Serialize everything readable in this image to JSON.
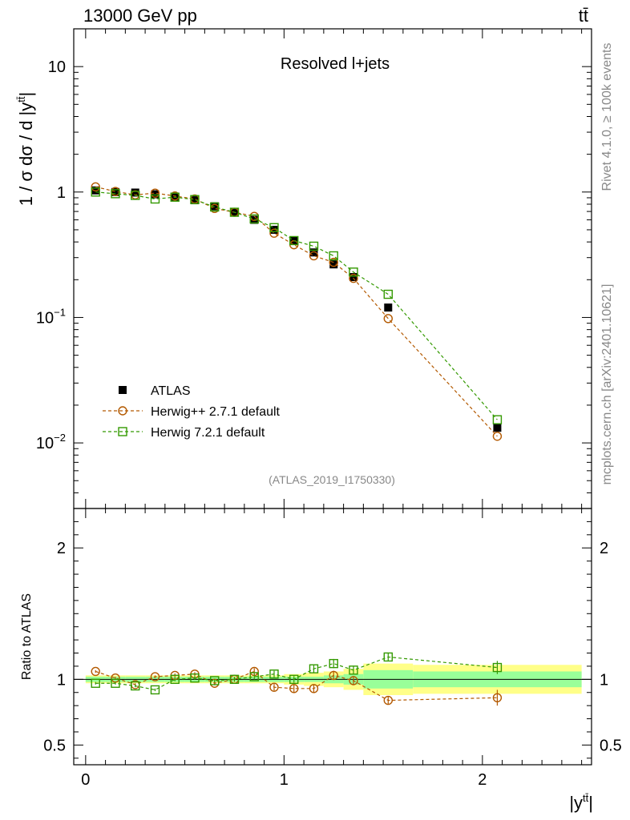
{
  "header": {
    "left_label": "13000 GeV pp",
    "right_label": "tt̄"
  },
  "side_labels": {
    "rivet": "Rivet 4.1.0, ≥ 100k events",
    "mcplots": "mcplots.cern.ch [arXiv:2401.10621]"
  },
  "chart_data": {
    "type": "scatter",
    "title": "Resolved l+jets",
    "analysis_tag": "(ATLAS_2019_I1750330)",
    "xlabel": "|y^{tt̄}|",
    "xlabel_main": "|y",
    "xlabel_sup": "tt̄",
    "xlabel_close": "|",
    "ylabel": "1 / σ dσ / d |y^{tt̄}|",
    "ylabel_main": "1 / σ dσ / d |y",
    "ylabel_sup": "tt̄",
    "ylabel_close": "|",
    "ratio_ylabel": "Ratio to ATLAS",
    "xlim": [
      -0.06,
      2.55
    ],
    "ylim_main": [
      0.003,
      20
    ],
    "ylim_ratio": [
      0.35,
      2.3
    ],
    "yscale_main": "log",
    "x_ticks": [
      0,
      1,
      2
    ],
    "x_tick_labels": [
      "0",
      "1",
      "2"
    ],
    "main_y_ticks": [
      {
        "value": 10,
        "base": "10",
        "exp": ""
      },
      {
        "value": 1,
        "base": "1",
        "exp": ""
      },
      {
        "value": 0.1,
        "base": "10",
        "exp": "−1"
      },
      {
        "value": 0.01,
        "base": "10",
        "exp": "−2"
      }
    ],
    "ratio_y_ticks": [
      0.5,
      1,
      2
    ],
    "ratio_y_tick_labels": [
      "0.5",
      "1",
      "2"
    ],
    "legend_position": "lower-left",
    "bin_edges": [
      0.0,
      0.1,
      0.2,
      0.3,
      0.4,
      0.5,
      0.6,
      0.7,
      0.8,
      0.9,
      1.0,
      1.1,
      1.2,
      1.3,
      1.4,
      1.65,
      2.5
    ],
    "x": [
      0.05,
      0.15,
      0.25,
      0.35,
      0.45,
      0.55,
      0.65,
      0.75,
      0.85,
      0.95,
      1.05,
      1.15,
      1.25,
      1.35,
      1.525,
      2.075
    ],
    "ratio_bands": {
      "stat_half_width": [
        0.02,
        0.02,
        0.02,
        0.02,
        0.02,
        0.02,
        0.02,
        0.02,
        0.02,
        0.02,
        0.02,
        0.02,
        0.03,
        0.04,
        0.07,
        0.06
      ],
      "total_half_width": [
        0.03,
        0.03,
        0.03,
        0.03,
        0.03,
        0.03,
        0.03,
        0.03,
        0.03,
        0.03,
        0.04,
        0.05,
        0.06,
        0.08,
        0.12,
        0.11
      ],
      "stat_color": "#99ff99",
      "total_color": "#ffff88"
    },
    "series": [
      {
        "name": "ATLAS",
        "color": "#000000",
        "marker": "filled-square",
        "values": [
          1.03,
          1.0,
          0.99,
          0.96,
          0.92,
          0.86,
          0.77,
          0.69,
          0.6,
          0.5,
          0.41,
          0.33,
          0.265,
          0.21,
          0.12,
          0.0132
        ],
        "ratio": [
          1,
          1,
          1,
          1,
          1,
          1,
          1,
          1,
          1,
          1,
          1,
          1,
          1,
          1,
          1,
          1
        ]
      },
      {
        "name": "Herwig++ 2.7.1 default",
        "color": "#b35900",
        "marker": "open-circle",
        "values": [
          1.1,
          1.01,
          0.95,
          0.98,
          0.93,
          0.88,
          0.74,
          0.69,
          0.64,
          0.47,
          0.38,
          0.31,
          0.275,
          0.205,
          0.098,
          0.0113
        ],
        "ratio": [
          1.06,
          1.01,
          0.96,
          1.02,
          1.03,
          1.04,
          0.97,
          1.0,
          1.06,
          0.94,
          0.93,
          0.93,
          1.03,
          0.99,
          0.84,
          0.86
        ],
        "ratio_err": [
          0.01,
          0.01,
          0.01,
          0.01,
          0.015,
          0.015,
          0.015,
          0.02,
          0.025,
          0.025,
          0.03,
          0.03,
          0.035,
          0.035,
          0.03,
          0.06
        ]
      },
      {
        "name": "Herwig 7.2.1 default",
        "color": "#339900",
        "marker": "open-square",
        "values": [
          1.0,
          0.97,
          0.94,
          0.88,
          0.91,
          0.87,
          0.76,
          0.69,
          0.61,
          0.52,
          0.41,
          0.37,
          0.31,
          0.23,
          0.153,
          0.0153
        ],
        "ratio": [
          0.97,
          0.97,
          0.95,
          0.92,
          1.0,
          1.01,
          0.99,
          1.0,
          1.02,
          1.04,
          1.0,
          1.08,
          1.12,
          1.07,
          1.17,
          1.09
        ],
        "ratio_err": [
          0.01,
          0.01,
          0.01,
          0.01,
          0.015,
          0.015,
          0.015,
          0.015,
          0.02,
          0.025,
          0.025,
          0.03,
          0.035,
          0.03,
          0.03,
          0.05
        ]
      }
    ]
  }
}
